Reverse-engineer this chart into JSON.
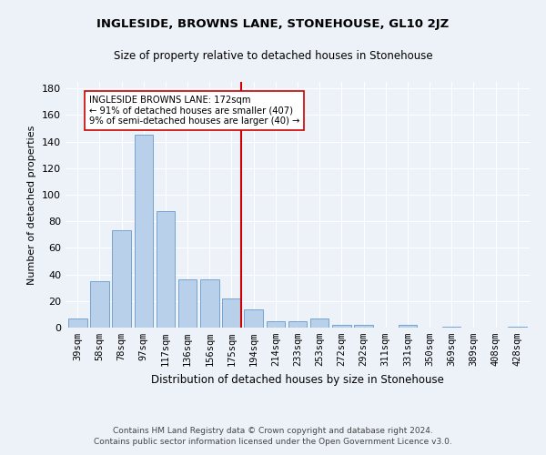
{
  "title": "INGLESIDE, BROWNS LANE, STONEHOUSE, GL10 2JZ",
  "subtitle": "Size of property relative to detached houses in Stonehouse",
  "xlabel": "Distribution of detached houses by size in Stonehouse",
  "ylabel": "Number of detached properties",
  "categories": [
    "39sqm",
    "58sqm",
    "78sqm",
    "97sqm",
    "117sqm",
    "136sqm",
    "156sqm",
    "175sqm",
    "194sqm",
    "214sqm",
    "233sqm",
    "253sqm",
    "272sqm",
    "292sqm",
    "311sqm",
    "331sqm",
    "350sqm",
    "369sqm",
    "389sqm",
    "408sqm",
    "428sqm"
  ],
  "values": [
    7,
    35,
    73,
    145,
    88,
    36,
    36,
    22,
    14,
    5,
    5,
    7,
    2,
    2,
    0,
    2,
    0,
    1,
    0,
    0,
    1
  ],
  "bar_color": "#b8d0ea",
  "bar_edge_color": "#6699cc",
  "vline_color": "#cc0000",
  "annotation_text": "INGLESIDE BROWNS LANE: 172sqm\n← 91% of detached houses are smaller (407)\n9% of semi-detached houses are larger (40) →",
  "annotation_box_color": "#ffffff",
  "annotation_box_edge": "#cc0000",
  "bg_color": "#edf2f9",
  "grid_color": "#ffffff",
  "footer_line1": "Contains HM Land Registry data © Crown copyright and database right 2024.",
  "footer_line2": "Contains public sector information licensed under the Open Government Licence v3.0.",
  "ylim": [
    0,
    185
  ],
  "yticks": [
    0,
    20,
    40,
    60,
    80,
    100,
    120,
    140,
    160,
    180
  ]
}
